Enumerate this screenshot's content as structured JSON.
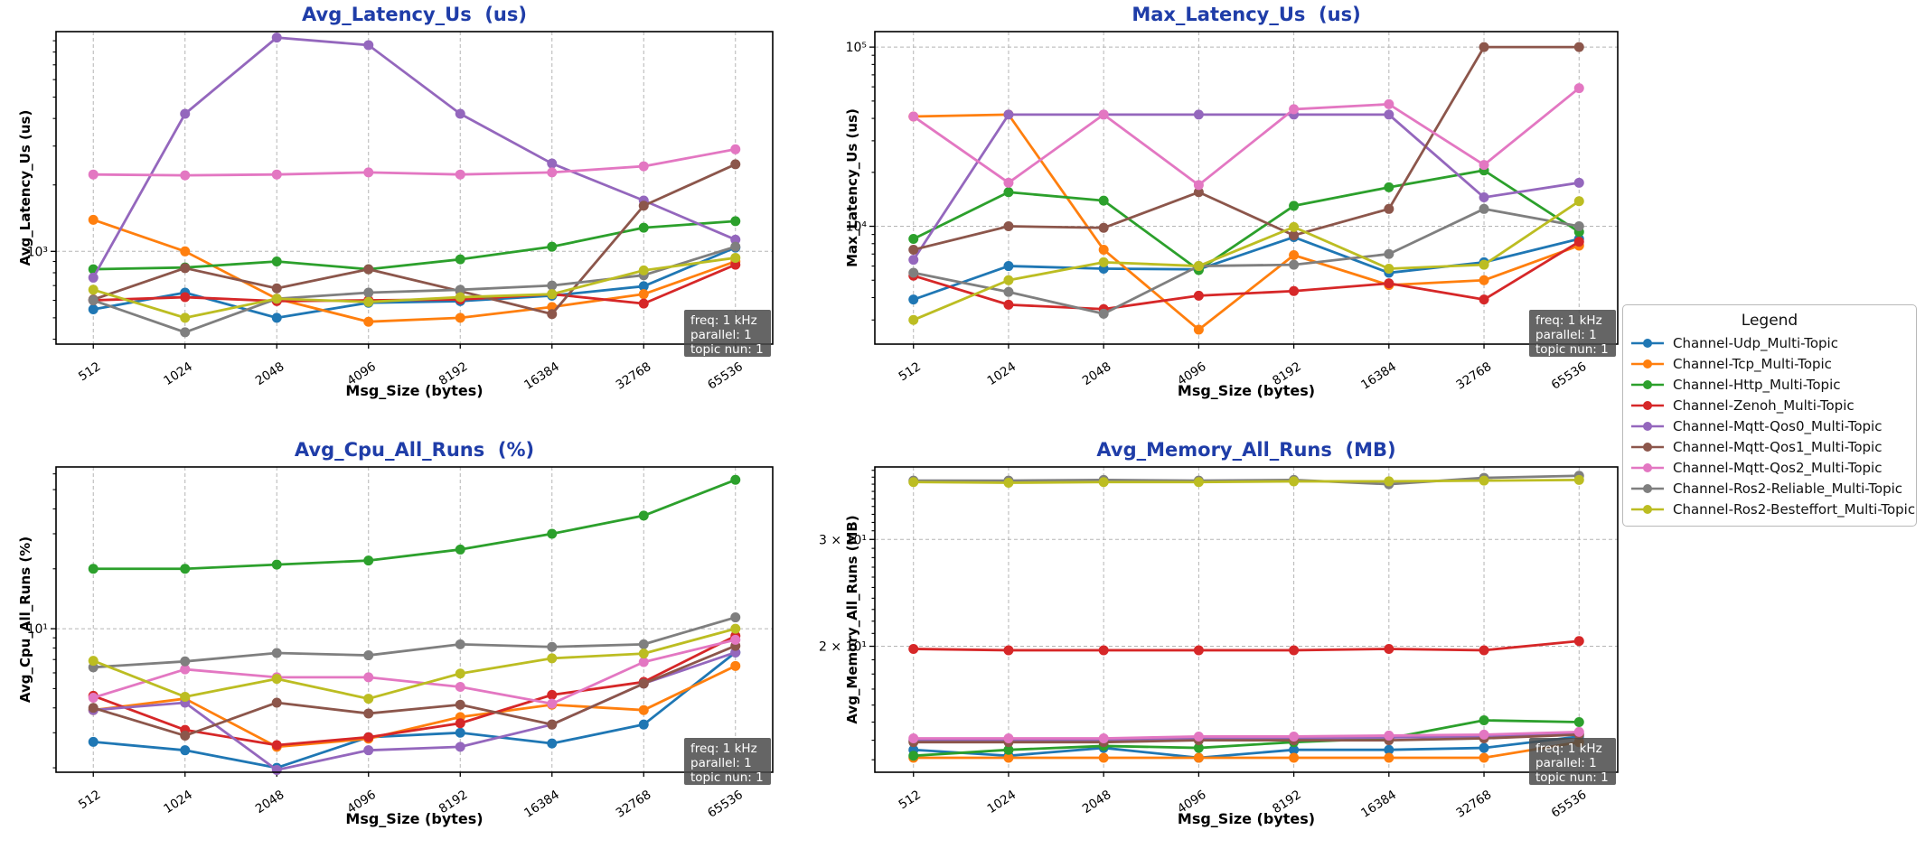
{
  "figure": {
    "background": "#ffffff",
    "title_color": "#1f3da8",
    "grid_color": "#b5b5b5",
    "spine_color": "#000000"
  },
  "legend": {
    "title": "Legend",
    "entries": [
      {
        "label": "Channel-Udp_Multi-Topic",
        "color": "#1f77b4"
      },
      {
        "label": "Channel-Tcp_Multi-Topic",
        "color": "#ff7f0e"
      },
      {
        "label": "Channel-Http_Multi-Topic",
        "color": "#2ca02c"
      },
      {
        "label": "Channel-Zenoh_Multi-Topic",
        "color": "#d62728"
      },
      {
        "label": "Channel-Mqtt-Qos0_Multi-Topic",
        "color": "#9467bd"
      },
      {
        "label": "Channel-Mqtt-Qos1_Multi-Topic",
        "color": "#8c564b"
      },
      {
        "label": "Channel-Mqtt-Qos2_Multi-Topic",
        "color": "#e377c2"
      },
      {
        "label": "Channel-Ros2-Reliable_Multi-Topic",
        "color": "#7f7f7f"
      },
      {
        "label": "Channel-Ros2-Besteffort_Multi-Topic",
        "color": "#bcbd22"
      }
    ]
  },
  "annotation": {
    "lines": [
      "freq: 1 kHz",
      "parallel: 1",
      "topic nun: 1"
    ],
    "bg": "#4a4a4a",
    "text_color": "#ffffff"
  },
  "chart_data": [
    {
      "type": "line",
      "title": "Avg_Latency_Us  (us)",
      "ylabel": "Avg_Latency_Us (us)",
      "xlabel": "Msg_Size (bytes)",
      "yscale": "log",
      "ylim": [
        380,
        9900
      ],
      "yticks": [
        {
          "value": 1000,
          "label": "10³"
        }
      ],
      "grid": true,
      "x_categories": [
        "512",
        "1024",
        "2048",
        "4096",
        "8192",
        "16384",
        "32768",
        "65536"
      ],
      "series": [
        {
          "name": "Channel-Udp_Multi-Topic",
          "values": [
            546,
            650,
            500,
            585,
            595,
            630,
            695,
            1040
          ]
        },
        {
          "name": "Channel-Tcp_Multi-Topic",
          "values": [
            1390,
            1000,
            610,
            480,
            500,
            560,
            640,
            900
          ]
        },
        {
          "name": "Channel-Http_Multi-Topic",
          "values": [
            830,
            845,
            900,
            830,
            920,
            1050,
            1280,
            1370
          ]
        },
        {
          "name": "Channel-Zenoh_Multi-Topic",
          "values": [
            600,
            620,
            595,
            600,
            605,
            640,
            580,
            870
          ]
        },
        {
          "name": "Channel-Mqtt-Qos0_Multi-Topic",
          "values": [
            760,
            4200,
            9300,
            8600,
            4200,
            2500,
            1700,
            1130
          ]
        },
        {
          "name": "Channel-Mqtt-Qos1_Multi-Topic",
          "values": [
            605,
            840,
            680,
            830,
            660,
            520,
            1610,
            2480
          ]
        },
        {
          "name": "Channel-Mqtt-Qos2_Multi-Topic",
          "values": [
            2230,
            2210,
            2230,
            2280,
            2230,
            2280,
            2430,
            2900
          ]
        },
        {
          "name": "Channel-Ros2-Reliable_Multi-Topic",
          "values": [
            600,
            430,
            610,
            650,
            670,
            700,
            780,
            1050
          ]
        },
        {
          "name": "Channel-Ros2-Besteffort_Multi-Topic",
          "values": [
            670,
            500,
            610,
            590,
            620,
            640,
            820,
            935
          ]
        }
      ]
    },
    {
      "type": "line",
      "title": "Max_Latency_Us  (us)",
      "ylabel": "Max_Latency_Us (us)",
      "xlabel": "Msg_Size (bytes)",
      "yscale": "log",
      "ylim": [
        2200,
        122000
      ],
      "yticks": [
        {
          "value": 10000,
          "label": "10⁴"
        },
        {
          "value": 100000,
          "label": "10⁵"
        }
      ],
      "grid": true,
      "x_categories": [
        "512",
        "1024",
        "2048",
        "4096",
        "8192",
        "16384",
        "32768",
        "65536"
      ],
      "series": [
        {
          "name": "Channel-Udp_Multi-Topic",
          "values": [
            3900,
            6000,
            5800,
            5750,
            8700,
            5500,
            6300,
            8500
          ]
        },
        {
          "name": "Channel-Tcp_Multi-Topic",
          "values": [
            41000,
            42000,
            7400,
            2650,
            6900,
            4700,
            5000,
            7800
          ]
        },
        {
          "name": "Channel-Http_Multi-Topic",
          "values": [
            8500,
            15500,
            13900,
            5700,
            13000,
            16500,
            20500,
            9300
          ]
        },
        {
          "name": "Channel-Zenoh_Multi-Topic",
          "values": [
            5300,
            3650,
            3450,
            4100,
            4350,
            4800,
            3900,
            8200
          ]
        },
        {
          "name": "Channel-Mqtt-Qos0_Multi-Topic",
          "values": [
            6500,
            42000,
            42000,
            42000,
            42000,
            42000,
            14500,
            17500
          ]
        },
        {
          "name": "Channel-Mqtt-Qos1_Multi-Topic",
          "values": [
            7400,
            10000,
            9800,
            15500,
            8900,
            12500,
            100000,
            100000
          ]
        },
        {
          "name": "Channel-Mqtt-Qos2_Multi-Topic",
          "values": [
            41000,
            17500,
            42000,
            17000,
            45000,
            48000,
            22000,
            59000
          ]
        },
        {
          "name": "Channel-Ros2-Reliable_Multi-Topic",
          "values": [
            5500,
            4300,
            3250,
            6000,
            6100,
            7000,
            12500,
            10000
          ]
        },
        {
          "name": "Channel-Ros2-Besteffort_Multi-Topic",
          "values": [
            3000,
            5000,
            6300,
            6000,
            9900,
            5800,
            6100,
            13800
          ]
        }
      ]
    },
    {
      "type": "line",
      "title": "Avg_Cpu_All_Runs  (%)",
      "ylabel": "Avg_Cpu_All_Runs (%)",
      "xlabel": "Msg_Size (bytes)",
      "yscale": "log",
      "ylim": [
        1.9,
        65
      ],
      "yticks": [
        {
          "value": 10,
          "label": "10¹"
        }
      ],
      "grid": true,
      "x_categories": [
        "512",
        "1024",
        "2048",
        "4096",
        "8192",
        "16384",
        "32768",
        "65536"
      ],
      "series": [
        {
          "name": "Channel-Udp_Multi-Topic",
          "values": [
            2.7,
            2.45,
            2.0,
            2.85,
            3.0,
            2.65,
            3.3,
            7.6
          ]
        },
        {
          "name": "Channel-Tcp_Multi-Topic",
          "values": [
            3.9,
            4.45,
            2.55,
            2.8,
            3.6,
            4.15,
            3.9,
            6.5
          ]
        },
        {
          "name": "Channel-Http_Multi-Topic",
          "values": [
            20,
            20,
            21,
            22,
            25,
            30,
            37,
            56
          ]
        },
        {
          "name": "Channel-Zenoh_Multi-Topic",
          "values": [
            4.6,
            3.1,
            2.6,
            2.85,
            3.35,
            4.65,
            5.4,
            9.2
          ]
        },
        {
          "name": "Channel-Mqtt-Qos0_Multi-Topic",
          "values": [
            3.9,
            4.25,
            1.95,
            2.45,
            2.55,
            3.3,
            5.3,
            7.6
          ]
        },
        {
          "name": "Channel-Mqtt-Qos1_Multi-Topic",
          "values": [
            4.0,
            2.9,
            4.25,
            3.75,
            4.15,
            3.3,
            5.3,
            8.2
          ]
        },
        {
          "name": "Channel-Mqtt-Qos2_Multi-Topic",
          "values": [
            4.5,
            6.25,
            5.7,
            5.7,
            5.1,
            4.2,
            6.8,
            8.8
          ]
        },
        {
          "name": "Channel-Ros2-Reliable_Multi-Topic",
          "values": [
            6.4,
            6.85,
            7.55,
            7.35,
            8.35,
            8.1,
            8.35,
            11.4
          ]
        },
        {
          "name": "Channel-Ros2-Besteffort_Multi-Topic",
          "values": [
            6.9,
            4.55,
            5.6,
            4.45,
            5.95,
            7.1,
            7.5,
            10.0
          ]
        }
      ]
    },
    {
      "type": "line",
      "title": "Avg_Memory_All_Runs  (MB)",
      "ylabel": "Avg_Memory_All_Runs (MB)",
      "xlabel": "Msg_Size (bytes)",
      "yscale": "log",
      "ylim": [
        12.4,
        39.5
      ],
      "yticks": [
        {
          "value": 20,
          "label": "2 × 10¹"
        },
        {
          "value": 30,
          "label": "3 × 10¹"
        }
      ],
      "grid": true,
      "x_categories": [
        "512",
        "1024",
        "2048",
        "4096",
        "8192",
        "16384",
        "32768",
        "65536"
      ],
      "series": [
        {
          "name": "Channel-Udp_Multi-Topic",
          "values": [
            13.5,
            13.2,
            13.6,
            13.1,
            13.5,
            13.5,
            13.6,
            14.2
          ]
        },
        {
          "name": "Channel-Tcp_Multi-Topic",
          "values": [
            13.1,
            13.1,
            13.1,
            13.1,
            13.1,
            13.1,
            13.1,
            13.9
          ]
        },
        {
          "name": "Channel-Http_Multi-Topic",
          "values": [
            13.2,
            13.5,
            13.7,
            13.6,
            13.9,
            14.1,
            15.1,
            15.0
          ]
        },
        {
          "name": "Channel-Zenoh_Multi-Topic",
          "values": [
            19.8,
            19.7,
            19.7,
            19.7,
            19.7,
            19.8,
            19.7,
            20.4
          ]
        },
        {
          "name": "Channel-Mqtt-Qos0_Multi-Topic",
          "values": [
            14.0,
            14.0,
            14.0,
            14.1,
            14.1,
            14.15,
            14.2,
            14.35
          ]
        },
        {
          "name": "Channel-Mqtt-Qos1_Multi-Topic",
          "values": [
            13.9,
            13.9,
            13.9,
            14.0,
            14.0,
            14.0,
            14.1,
            14.3
          ]
        },
        {
          "name": "Channel-Mqtt-Qos2_Multi-Topic",
          "values": [
            14.1,
            14.1,
            14.1,
            14.2,
            14.2,
            14.25,
            14.3,
            14.45
          ]
        },
        {
          "name": "Channel-Ros2-Reliable_Multi-Topic",
          "values": [
            37.5,
            37.5,
            37.6,
            37.5,
            37.6,
            37.0,
            37.9,
            38.2
          ]
        },
        {
          "name": "Channel-Ros2-Besteffort_Multi-Topic",
          "values": [
            37.3,
            37.2,
            37.3,
            37.3,
            37.4,
            37.4,
            37.5,
            37.6
          ]
        }
      ]
    }
  ]
}
